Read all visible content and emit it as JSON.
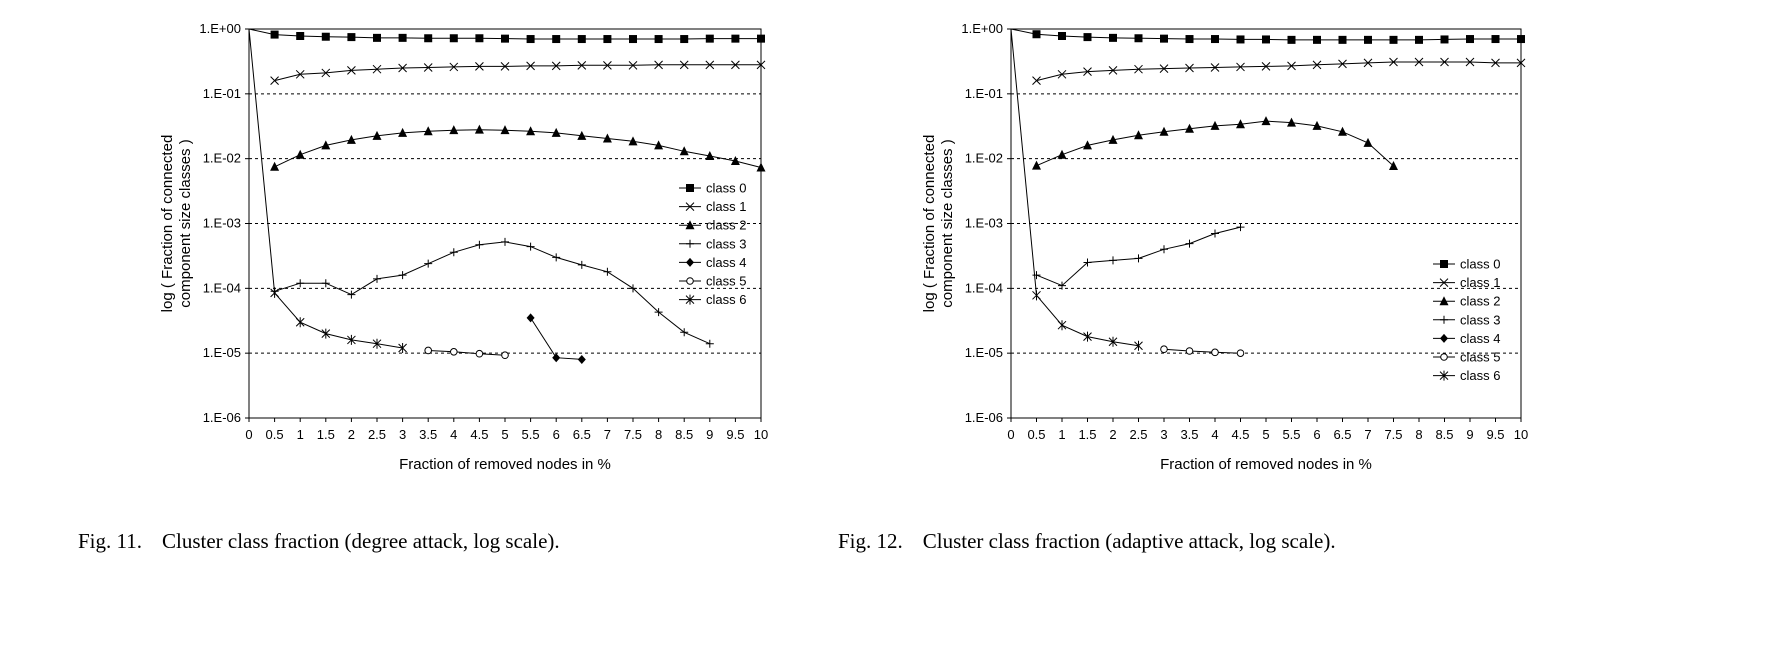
{
  "chart_data": [
    {
      "type": "line",
      "caption": {
        "number": "Fig. 11.",
        "text": "Cluster class fraction (degree attack, log scale)."
      },
      "xlabel": "Fraction of removed nodes in %",
      "ylabel": [
        "log ( Fraction of connected",
        "component size classes )"
      ],
      "xlim": [
        0,
        10
      ],
      "ylim": [
        1e-06,
        1
      ],
      "yscale": "log",
      "x_ticks": [
        "0",
        "0.5",
        "1",
        "1.5",
        "2",
        "2.5",
        "3",
        "3.5",
        "4",
        "4.5",
        "5",
        "5.5",
        "6",
        "6.5",
        "7",
        "7.5",
        "8",
        "8.5",
        "9",
        "9.5",
        "10"
      ],
      "y_ticks": [
        "1.E+00",
        "1.E-01",
        "1.E-02",
        "1.E-03",
        "1.E-04",
        "1.E-05",
        "1.E-06"
      ],
      "grid": "horizontal-dashed",
      "legend_position": "right-middle",
      "series": [
        {
          "name": "class 0",
          "marker": "square",
          "x": [
            0,
            0.5,
            1,
            1.5,
            2,
            2.5,
            3,
            3.5,
            4,
            4.5,
            5,
            5.5,
            6,
            6.5,
            7,
            7.5,
            8,
            8.5,
            9,
            9.5,
            10
          ],
          "y": [
            1,
            0.82,
            0.78,
            0.76,
            0.75,
            0.73,
            0.73,
            0.72,
            0.72,
            0.72,
            0.71,
            0.7,
            0.7,
            0.7,
            0.7,
            0.7,
            0.7,
            0.7,
            0.71,
            0.71,
            0.71
          ]
        },
        {
          "name": "class 1",
          "marker": "x",
          "x": [
            0.5,
            1,
            1.5,
            2,
            2.5,
            3,
            3.5,
            4,
            4.5,
            5,
            5.5,
            6,
            6.5,
            7,
            7.5,
            8,
            8.5,
            9,
            9.5,
            10
          ],
          "y": [
            0.16,
            0.2,
            0.21,
            0.23,
            0.24,
            0.25,
            0.255,
            0.26,
            0.265,
            0.265,
            0.27,
            0.27,
            0.275,
            0.275,
            0.275,
            0.28,
            0.28,
            0.28,
            0.28,
            0.28
          ]
        },
        {
          "name": "class 2",
          "marker": "triangle",
          "x": [
            0.5,
            1,
            1.5,
            2,
            2.5,
            3,
            3.5,
            4,
            4.5,
            5,
            5.5,
            6,
            6.5,
            7,
            7.5,
            8,
            8.5,
            9,
            9.5,
            10
          ],
          "y": [
            0.0075,
            0.0115,
            0.016,
            0.0195,
            0.0225,
            0.025,
            0.0265,
            0.0275,
            0.028,
            0.0275,
            0.0265,
            0.025,
            0.0225,
            0.0205,
            0.0185,
            0.016,
            0.013,
            0.011,
            0.0092,
            0.0073
          ]
        },
        {
          "name": "class 3",
          "marker": "plus",
          "x": [
            0.5,
            1,
            1.5,
            2,
            2.5,
            3,
            3.5,
            4,
            4.5,
            5,
            5.5,
            6,
            6.5,
            7,
            7.5,
            8,
            8.5,
            9
          ],
          "y": [
            9e-05,
            0.00012,
            0.00012,
            8e-05,
            0.00014,
            0.00016,
            0.00024,
            0.00036,
            0.00047,
            0.00052,
            0.00044,
            0.0003,
            0.00023,
            0.00018,
            0.0001,
            4.3e-05,
            2.1e-05,
            1.4e-05
          ]
        },
        {
          "name": "class 4",
          "marker": "diamond",
          "x": [
            5.5,
            6,
            6.5
          ],
          "y": [
            3.5e-05,
            8.5e-06,
            8e-06
          ]
        },
        {
          "name": "class 5",
          "marker": "circle",
          "x": [
            3.5,
            4,
            4.5,
            5
          ],
          "y": [
            1.1e-05,
            1.05e-05,
            9.8e-06,
            9.3e-06
          ]
        },
        {
          "name": "class 6",
          "marker": "asterisk",
          "x": [
            0,
            0.5,
            1,
            1.5,
            2,
            2.5,
            3
          ],
          "y": [
            1,
            8.5e-05,
            3e-05,
            2e-05,
            1.6e-05,
            1.4e-05,
            1.2e-05
          ]
        }
      ]
    },
    {
      "type": "line",
      "caption": {
        "number": "Fig. 12.",
        "text": "Cluster class fraction (adaptive attack, log scale)."
      },
      "xlabel": "Fraction of removed nodes in %",
      "ylabel": [
        "log ( Fraction of connected",
        "component size classes )"
      ],
      "xlim": [
        0,
        10
      ],
      "ylim": [
        1e-06,
        1
      ],
      "yscale": "log",
      "x_ticks": [
        "0",
        "0.5",
        "1",
        "1.5",
        "2",
        "2.5",
        "3",
        "3.5",
        "4",
        "4.5",
        "5",
        "5.5",
        "6",
        "6.5",
        "7",
        "7.5",
        "8",
        "8.5",
        "9",
        "9.5",
        "10"
      ],
      "y_ticks": [
        "1.E+00",
        "1.E-01",
        "1.E-02",
        "1.E-03",
        "1.E-04",
        "1.E-05",
        "1.E-06"
      ],
      "grid": "horizontal-dashed",
      "legend_position": "bottom-right",
      "series": [
        {
          "name": "class 0",
          "marker": "square",
          "x": [
            0,
            0.5,
            1,
            1.5,
            2,
            2.5,
            3,
            3.5,
            4,
            4.5,
            5,
            5.5,
            6,
            6.5,
            7,
            7.5,
            8,
            8.5,
            9,
            9.5,
            10
          ],
          "y": [
            1,
            0.83,
            0.78,
            0.75,
            0.73,
            0.72,
            0.71,
            0.7,
            0.7,
            0.69,
            0.69,
            0.68,
            0.68,
            0.68,
            0.68,
            0.68,
            0.68,
            0.69,
            0.7,
            0.7,
            0.7
          ]
        },
        {
          "name": "class 1",
          "marker": "x",
          "x": [
            0.5,
            1,
            1.5,
            2,
            2.5,
            3,
            3.5,
            4,
            4.5,
            5,
            5.5,
            6,
            6.5,
            7,
            7.5,
            8,
            8.5,
            9,
            9.5,
            10
          ],
          "y": [
            0.16,
            0.2,
            0.22,
            0.23,
            0.24,
            0.245,
            0.25,
            0.255,
            0.26,
            0.265,
            0.27,
            0.28,
            0.29,
            0.3,
            0.31,
            0.31,
            0.31,
            0.31,
            0.3,
            0.3
          ]
        },
        {
          "name": "class 2",
          "marker": "triangle",
          "x": [
            0.5,
            1,
            1.5,
            2,
            2.5,
            3,
            3.5,
            4,
            4.5,
            5,
            5.5,
            6,
            6.5,
            7,
            7.5
          ],
          "y": [
            0.0078,
            0.0115,
            0.016,
            0.0195,
            0.023,
            0.026,
            0.029,
            0.032,
            0.034,
            0.038,
            0.036,
            0.032,
            0.026,
            0.0175,
            0.0077
          ]
        },
        {
          "name": "class 3",
          "marker": "plus",
          "x": [
            0.5,
            1,
            1.5,
            2,
            2.5,
            3,
            3.5,
            4,
            4.5
          ],
          "y": [
            0.00016,
            0.00011,
            0.00025,
            0.00027,
            0.00029,
            0.0004,
            0.00049,
            0.0007,
            0.00088
          ]
        },
        {
          "name": "class 4",
          "marker": "diamond",
          "x": [],
          "y": []
        },
        {
          "name": "class 5",
          "marker": "circle",
          "x": [
            3,
            3.5,
            4,
            4.5
          ],
          "y": [
            1.15e-05,
            1.08e-05,
            1.03e-05,
            1e-05
          ]
        },
        {
          "name": "class 6",
          "marker": "asterisk",
          "x": [
            0,
            0.5,
            1,
            1.5,
            2,
            2.5
          ],
          "y": [
            1,
            7.8e-05,
            2.7e-05,
            1.8e-05,
            1.5e-05,
            1.3e-05
          ]
        }
      ]
    }
  ]
}
